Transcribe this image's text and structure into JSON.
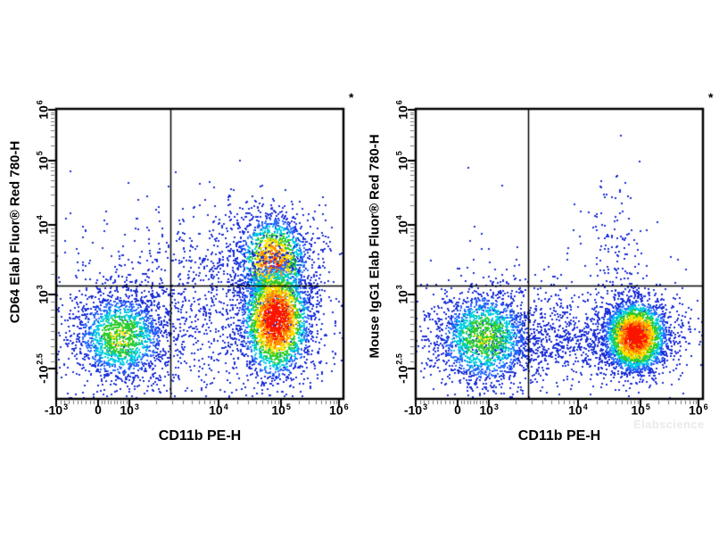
{
  "watermark": "Elabscience",
  "background_color": "#ffffff",
  "colormap": {
    "description": "pseudocolor density ramp, threshold:hex pairs from dense to sparse",
    "stops": [
      [
        0.82,
        "#fb1500"
      ],
      [
        0.66,
        "#ff8800"
      ],
      [
        0.52,
        "#ffe000"
      ],
      [
        0.38,
        "#2fcc2f"
      ],
      [
        0.26,
        "#00cfe0"
      ],
      [
        0.16,
        "#2a6bff"
      ],
      [
        0.0,
        "#1b2fd8"
      ]
    ]
  },
  "chart_data": [
    {
      "type": "scatter",
      "subtype": "flow-cytometry-pseudocolor-density",
      "xlabel": "CD11b PE-H",
      "ylabel": "CD64 Elab Fluor® Red 780-H",
      "annotation": "*",
      "x_scale": "biexponential",
      "y_scale": "biexponential",
      "x_range": [
        "-10^3",
        "10^6"
      ],
      "y_range": [
        "-10^2.5",
        "10^6"
      ],
      "grid": false,
      "legend": "none",
      "x_ticks": [
        {
          "text": "-10",
          "sup": "3",
          "f": 0.0
        },
        {
          "text": "0",
          "sup": "",
          "f": 0.146
        },
        {
          "text": "10",
          "sup": "3",
          "f": 0.255
        },
        {
          "text": "10",
          "sup": "4",
          "f": 0.565
        },
        {
          "text": "10",
          "sup": "5",
          "f": 0.783
        },
        {
          "text": "10",
          "sup": "6",
          "f": 0.984
        }
      ],
      "y_ticks": [
        {
          "text": "10",
          "sup": "6",
          "f": 0.003
        },
        {
          "text": "10",
          "sup": "5",
          "f": 0.178
        },
        {
          "text": "10",
          "sup": "4",
          "f": 0.4
        },
        {
          "text": "10",
          "sup": "3",
          "f": 0.64
        },
        {
          "text": "-10",
          "sup": "2.5",
          "f": 0.895
        }
      ],
      "x_anchors": [
        {
          "v": -1000,
          "f": 0.0
        },
        {
          "v": 0,
          "f": 0.146
        },
        {
          "v": 1000,
          "f": 0.255
        },
        {
          "v": 10000,
          "f": 0.565
        },
        {
          "v": 100000,
          "f": 0.783
        },
        {
          "v": 1000000,
          "f": 0.984
        }
      ],
      "y_anchors": [
        {
          "v": 1000000,
          "f": 0.003
        },
        {
          "v": 100000,
          "f": 0.178
        },
        {
          "v": 10000,
          "f": 0.4
        },
        {
          "v": 1000,
          "f": 0.64
        },
        {
          "v": -316,
          "f": 0.895
        }
      ],
      "quadrant_gate": {
        "x_f": 0.397,
        "y_f": 0.609,
        "x_value": "~2.5×10³",
        "y_value": "~1.5×10³"
      },
      "clusters": [
        {
          "name": "diffuse-scatter",
          "fx": 0.52,
          "fy": 0.745,
          "sx": 0.3,
          "sy": 0.135,
          "n": 1000,
          "peak": 0.13
        },
        {
          "name": "mid-sparse-above-gate",
          "fx": 0.66,
          "fy": 0.5,
          "sx": 0.17,
          "sy": 0.105,
          "n": 420,
          "peak": 0.1
        },
        {
          "name": "upper-left-sparse",
          "fx": 0.33,
          "fy": 0.56,
          "sx": 0.26,
          "sy": 0.17,
          "n": 110,
          "peak": 0.05
        },
        {
          "name": "cd11b-neg-cd64-low",
          "fx": 0.225,
          "fy": 0.785,
          "sx": 0.085,
          "sy": 0.082,
          "n": 1600,
          "peak": 0.52,
          "x_center": "~7×10²",
          "y_center": "~3×10²"
        },
        {
          "name": "cd11b-pos-cd64-pos-upper",
          "fx": 0.755,
          "fy": 0.53,
          "sx": 0.066,
          "sy": 0.085,
          "n": 1500,
          "peak": 0.8,
          "x_center": "~8×10⁴",
          "y_center": "~2.8×10³"
        },
        {
          "name": "cd11b-pos-main",
          "fx": 0.765,
          "fy": 0.725,
          "sx": 0.062,
          "sy": 0.105,
          "n": 2600,
          "peak": 1.0,
          "x_center": "~8.5×10⁴",
          "y_center": "~6×10²"
        }
      ]
    },
    {
      "type": "scatter",
      "subtype": "flow-cytometry-pseudocolor-density",
      "xlabel": "CD11b PE-H",
      "ylabel": "Mouse IgG1 Elab Fluor® Red 780-H",
      "annotation": "*",
      "x_scale": "biexponential",
      "y_scale": "biexponential",
      "x_range": [
        "-10^3",
        "10^6"
      ],
      "y_range": [
        "-10^2.5",
        "10^6"
      ],
      "grid": false,
      "legend": "none",
      "x_ticks": [
        {
          "text": "-10",
          "sup": "3",
          "f": 0.0
        },
        {
          "text": "0",
          "sup": "",
          "f": 0.146
        },
        {
          "text": "10",
          "sup": "3",
          "f": 0.255
        },
        {
          "text": "10",
          "sup": "4",
          "f": 0.565
        },
        {
          "text": "10",
          "sup": "5",
          "f": 0.783
        },
        {
          "text": "10",
          "sup": "6",
          "f": 0.984
        }
      ],
      "y_ticks": [
        {
          "text": "10",
          "sup": "6",
          "f": 0.003
        },
        {
          "text": "10",
          "sup": "5",
          "f": 0.178
        },
        {
          "text": "10",
          "sup": "4",
          "f": 0.4
        },
        {
          "text": "10",
          "sup": "3",
          "f": 0.64
        },
        {
          "text": "-10",
          "sup": "2.5",
          "f": 0.895
        }
      ],
      "x_anchors": [
        {
          "v": -1000,
          "f": 0.0
        },
        {
          "v": 0,
          "f": 0.146
        },
        {
          "v": 1000,
          "f": 0.255
        },
        {
          "v": 10000,
          "f": 0.565
        },
        {
          "v": 100000,
          "f": 0.783
        },
        {
          "v": 1000000,
          "f": 0.984
        }
      ],
      "y_anchors": [
        {
          "v": 1000000,
          "f": 0.003
        },
        {
          "v": 100000,
          "f": 0.178
        },
        {
          "v": 10000,
          "f": 0.4
        },
        {
          "v": 1000,
          "f": 0.64
        },
        {
          "v": -316,
          "f": 0.895
        }
      ],
      "quadrant_gate": {
        "x_f": 0.392,
        "y_f": 0.609,
        "x_value": "~2.5×10³",
        "y_value": "~1.5×10³"
      },
      "clusters": [
        {
          "name": "horizontal-band",
          "fx": 0.48,
          "fy": 0.8,
          "sx": 0.26,
          "sy": 0.062,
          "n": 1000,
          "peak": 0.13
        },
        {
          "name": "diffuse-scatter",
          "fx": 0.55,
          "fy": 0.74,
          "sx": 0.3,
          "sy": 0.12,
          "n": 330,
          "peak": 0.07
        },
        {
          "name": "plume-above-gate",
          "fx": 0.7,
          "fy": 0.47,
          "sx": 0.055,
          "sy": 0.13,
          "n": 130,
          "peak": 0.05
        },
        {
          "name": "rare-upper-left",
          "fx": 0.2,
          "fy": 0.45,
          "sx": 0.15,
          "sy": 0.15,
          "n": 8,
          "peak": 0.03
        },
        {
          "name": "cd11b-neg-igg-neg",
          "fx": 0.24,
          "fy": 0.79,
          "sx": 0.092,
          "sy": 0.09,
          "n": 1700,
          "peak": 0.5,
          "x_center": "~7×10²",
          "y_center": "~3×10²"
        },
        {
          "name": "cd11b-pos-igg-neg",
          "fx": 0.765,
          "fy": 0.785,
          "sx": 0.058,
          "sy": 0.064,
          "n": 2800,
          "peak": 1.0,
          "x_center": "~8×10⁴",
          "y_center": "~3.3×10²"
        }
      ]
    }
  ]
}
